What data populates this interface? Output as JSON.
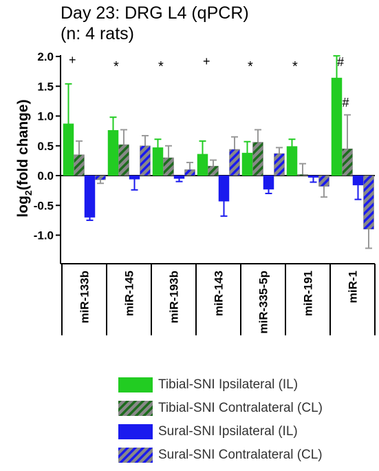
{
  "title_line1": "Day 23: DRG  L4 (qPCR)",
  "title_line2": "(n: 4 rats)",
  "chart_data": {
    "type": "bar",
    "ylabel_main": "log",
    "ylabel_sub": "2",
    "ylabel_rest": "(fold change)",
    "ylim": [
      -1.5,
      2.0
    ],
    "yticks": [
      "2.0",
      "1.5",
      "1.0",
      "0.5",
      "0.0",
      "-0.5",
      "-1.0"
    ],
    "categories": [
      "miR-133b",
      "miR-145",
      "miR-193b",
      "miR-143",
      "miR-335-5p",
      "miR-191",
      "miR-1"
    ],
    "significance": [
      "+",
      "*",
      "*",
      "+",
      "*",
      "*",
      "#"
    ],
    "extra_marker": {
      "category": "miR-1",
      "series": "Tibial-SNI Contralateral (CL)",
      "symbol": "#"
    },
    "series": [
      {
        "name": "Tibial-SNI Ipsilateral (IL)",
        "fill": "#22cc22",
        "pattern": "solid",
        "values": [
          0.87,
          0.76,
          0.47,
          0.36,
          0.38,
          0.49,
          1.64
        ],
        "errors": [
          0.67,
          0.22,
          0.14,
          0.22,
          0.19,
          0.12,
          0.37
        ]
      },
      {
        "name": "Tibial-SNI Contralateral (CL)",
        "fill": "#888888",
        "stripe": "#1e6b1e",
        "pattern": "stripe",
        "values": [
          0.35,
          0.52,
          0.3,
          0.16,
          0.56,
          0.02,
          0.45
        ],
        "errors": [
          0.23,
          0.25,
          0.2,
          0.1,
          0.21,
          0.18,
          0.57
        ]
      },
      {
        "name": "Sural-SNI Ipsilateral (IL)",
        "fill": "#1a1aee",
        "pattern": "solid",
        "values": [
          -0.7,
          -0.06,
          -0.05,
          -0.43,
          -0.23,
          -0.03,
          -0.16
        ],
        "errors": [
          0.05,
          0.18,
          0.05,
          0.25,
          0.07,
          0.08,
          0.24
        ]
      },
      {
        "name": "Sural-SNI Contralateral (CL)",
        "fill": "#888888",
        "stripe": "#1a1aee",
        "pattern": "stripe",
        "values": [
          -0.07,
          0.5,
          0.1,
          0.44,
          0.37,
          -0.18,
          -0.9
        ],
        "errors": [
          0.06,
          0.17,
          0.12,
          0.21,
          0.1,
          0.18,
          0.32
        ]
      }
    ]
  }
}
